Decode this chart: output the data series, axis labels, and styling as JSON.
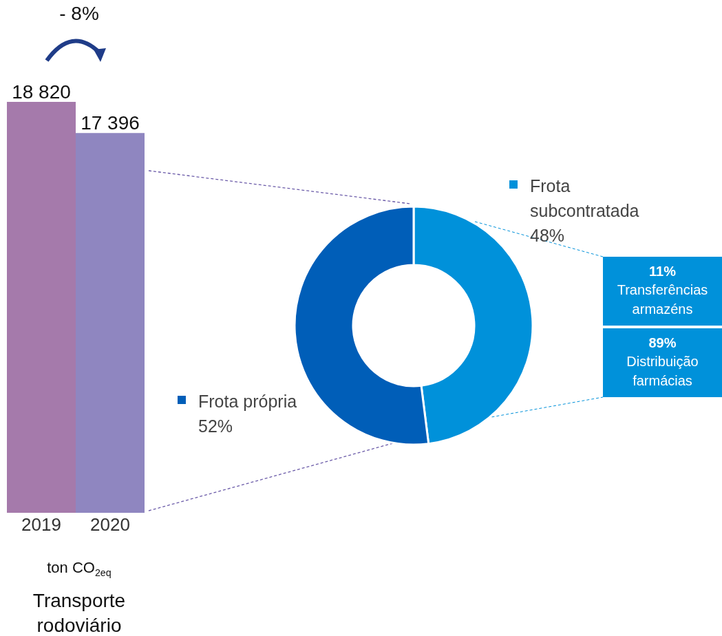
{
  "chart_data": [
    {
      "type": "bar",
      "title": "Transporte rodoviário",
      "xlabel": "ton CO$_{2eq}$",
      "categories": [
        "2019",
        "2020"
      ],
      "values": [
        18820,
        17396
      ],
      "value_labels": [
        "18 820",
        "17 396"
      ],
      "colors": [
        "#a57aab",
        "#8f86c0"
      ],
      "annotations": [
        "- 8%"
      ]
    },
    {
      "type": "donut",
      "categories": [
        "Frota subcontratada",
        "Frota própria"
      ],
      "values": [
        48,
        52
      ],
      "value_labels": [
        "48%",
        "52%"
      ],
      "colors": [
        "#0091da",
        "#005eb8"
      ],
      "legend": "right"
    },
    {
      "type": "other",
      "categories": [
        "Transferências armazéns",
        "Distribuição farmácias"
      ],
      "values": [
        11,
        89
      ],
      "value_labels": [
        "11%",
        "89%"
      ],
      "color": "#0091da"
    }
  ]
}
